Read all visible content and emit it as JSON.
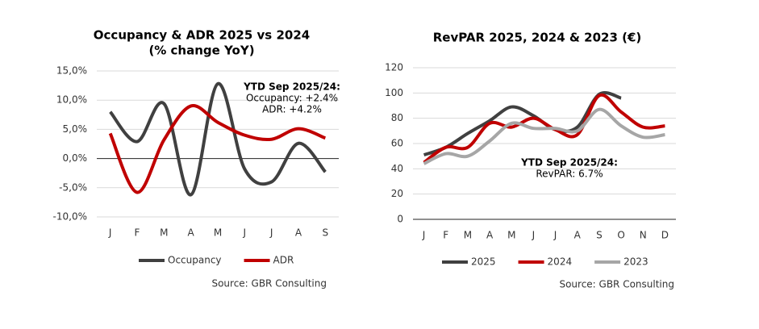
{
  "chart_data": [
    {
      "type": "line",
      "title": "Occupancy & ADR 2025 vs 2024",
      "subtitle": "(% change YoY)",
      "categories": [
        "J",
        "F",
        "M",
        "A",
        "M",
        "J",
        "J",
        "A",
        "S"
      ],
      "series": [
        {
          "name": "Occupancy",
          "color": "#404040",
          "values": [
            8.0,
            2.9,
            9.4,
            -6.2,
            12.8,
            -1.8,
            -4.0,
            2.6,
            -2.3
          ]
        },
        {
          "name": "ADR",
          "color": "#c00000",
          "values": [
            4.3,
            -5.8,
            3.2,
            9.0,
            6.2,
            4.0,
            3.3,
            5.1,
            3.5
          ]
        }
      ],
      "ylim": [
        -10,
        15
      ],
      "yticks": [
        {
          "value": -10,
          "label": "-10,0%"
        },
        {
          "value": -5,
          "label": "-5,0%"
        },
        {
          "value": 0,
          "label": "0,0%"
        },
        {
          "value": 5,
          "label": "5,0%"
        },
        {
          "value": 10,
          "label": "10,0%"
        },
        {
          "value": 15,
          "label": "15,0%"
        }
      ],
      "grid": true,
      "annotation": {
        "title": "YTD Sep 2025/24:",
        "lines": [
          "Occupancy: +2.4%",
          "ADR: +4.2%"
        ]
      },
      "source": "Source: GBR Consulting"
    },
    {
      "type": "line",
      "title": "RevPAR 2025, 2024 & 2023 (€)",
      "categories": [
        "J",
        "F",
        "M",
        "A",
        "M",
        "J",
        "J",
        "A",
        "S",
        "O",
        "N",
        "D"
      ],
      "series": [
        {
          "name": "2025",
          "color": "#404040",
          "values": [
            51,
            57,
            68,
            78,
            89,
            82,
            71,
            73,
            99,
            96,
            null,
            null
          ]
        },
        {
          "name": "2024",
          "color": "#c00000",
          "values": [
            45,
            57,
            57,
            76,
            73,
            80,
            71,
            67,
            98,
            85,
            73,
            74
          ]
        },
        {
          "name": "2023",
          "color": "#a6a6a6",
          "values": [
            44,
            52,
            50,
            62,
            76,
            72,
            72,
            70,
            87,
            74,
            65,
            67
          ]
        }
      ],
      "ylim": [
        0,
        120
      ],
      "yticks": [
        0,
        20,
        40,
        60,
        80,
        100,
        120
      ],
      "grid": true,
      "annotation": {
        "title": "YTD Sep 2025/24:",
        "lines": [
          "RevPAR: 6.7%"
        ]
      },
      "source": "Source: GBR Consulting"
    }
  ]
}
